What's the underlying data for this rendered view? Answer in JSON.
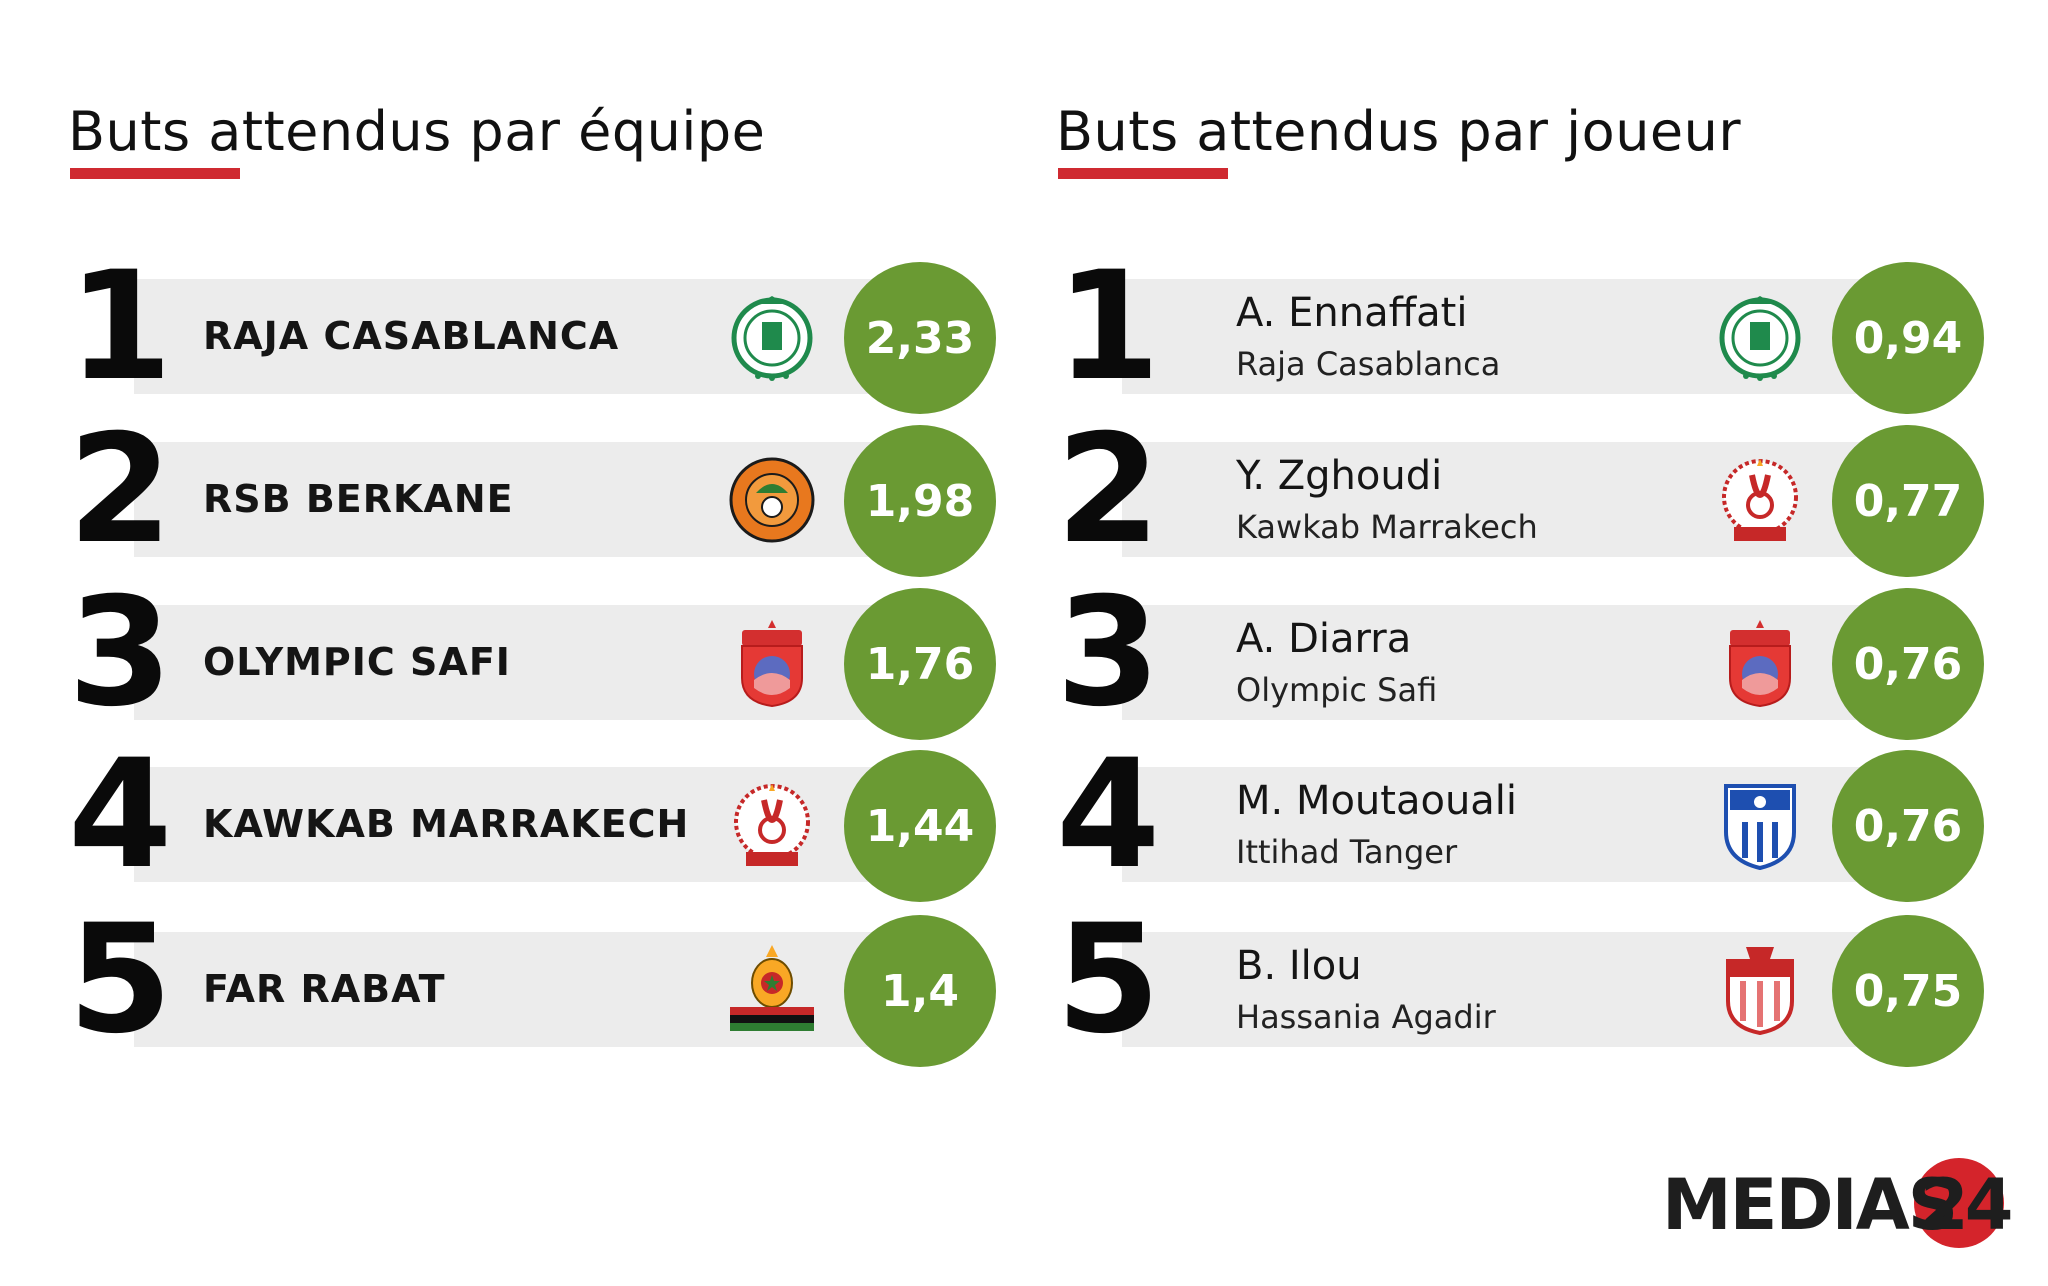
{
  "teams": {
    "title": "Buts attendus par équipe",
    "items": [
      {
        "rank": "1",
        "name": "RAJA CASABLANCA",
        "value": "2,33",
        "logo_icon": "raja-casablanca-crest-icon"
      },
      {
        "rank": "2",
        "name": "RSB BERKANE",
        "value": "1,98",
        "logo_icon": "rsb-berkane-crest-icon"
      },
      {
        "rank": "3",
        "name": "OLYMPIC SAFI",
        "value": "1,76",
        "logo_icon": "olympic-safi-crest-icon"
      },
      {
        "rank": "4",
        "name": "KAWKAB MARRAKECH",
        "value": "1,44",
        "logo_icon": "kawkab-marrakech-crest-icon"
      },
      {
        "rank": "5",
        "name": "FAR RABAT",
        "value": "1,4",
        "logo_icon": "far-rabat-crest-icon"
      }
    ]
  },
  "players": {
    "title": "Buts attendus par joueur",
    "items": [
      {
        "rank": "1",
        "name": "A. Ennaffati",
        "club": "Raja Casablanca",
        "value": "0,94",
        "logo_icon": "raja-casablanca-crest-icon"
      },
      {
        "rank": "2",
        "name": "Y. Zghoudi",
        "club": "Kawkab Marrakech",
        "value": "0,77",
        "logo_icon": "kawkab-marrakech-crest-icon"
      },
      {
        "rank": "3",
        "name": "A. Diarra",
        "club": "Olympic Safi",
        "value": "0,76",
        "logo_icon": "olympic-safi-crest-icon"
      },
      {
        "rank": "4",
        "name": "M. Moutaouali",
        "club": "Ittihad Tanger",
        "value": "0,76",
        "logo_icon": "ittihad-tanger-crest-icon"
      },
      {
        "rank": "5",
        "name": "B. Ilou",
        "club": "Hassania Agadir",
        "value": "0,75",
        "logo_icon": "hassania-agadir-crest-icon"
      }
    ]
  },
  "colors": {
    "accent_red": "#cf2a31",
    "value_green": "#6a9a33",
    "bar_gray": "#ececec"
  },
  "brand": {
    "text": "MEDIAS",
    "number": "24",
    "logo_icon": "medias24-logo-icon"
  }
}
